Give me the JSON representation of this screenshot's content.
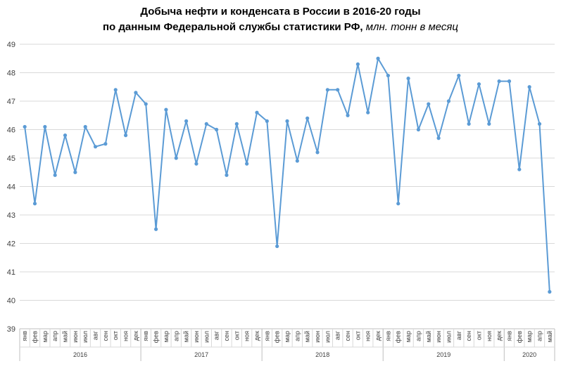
{
  "chart_data": {
    "type": "line",
    "title_line1": "Добыча нефти и конденсата в России в 2016-20 годы",
    "title_line2": "по данным Федеральной службы статистики РФ,",
    "title_unit": "млн. тонн в месяц",
    "ylim": [
      39,
      49
    ],
    "yticks": [
      "39",
      "40",
      "41",
      "42",
      "43",
      "44",
      "45",
      "46",
      "47",
      "48",
      "49"
    ],
    "grid": true,
    "line_color": "#5b9bd5",
    "legend": "none",
    "groups": [
      {
        "label": "2016",
        "months": [
          "янв",
          "фев",
          "мар",
          "апр",
          "май",
          "июн",
          "июл",
          "авг",
          "сен",
          "окт",
          "ноя",
          "дек"
        ]
      },
      {
        "label": "2017",
        "months": [
          "янв",
          "фев",
          "мар",
          "апр",
          "май",
          "июн",
          "июл",
          "авг",
          "сен",
          "окт",
          "ноя",
          "дек"
        ]
      },
      {
        "label": "2018",
        "months": [
          "янв",
          "фев",
          "мар",
          "апр",
          "май",
          "июн",
          "июл",
          "авг",
          "сен",
          "окт",
          "ноя",
          "дек"
        ]
      },
      {
        "label": "2019",
        "months": [
          "янв",
          "фев",
          "мар",
          "апр",
          "май",
          "июн",
          "июл",
          "авг",
          "сен",
          "окт",
          "ноя",
          "дек"
        ]
      },
      {
        "label": "2020",
        "months": [
          "янв",
          "фев",
          "мар",
          "апр",
          "май"
        ]
      }
    ],
    "values": [
      46.1,
      43.4,
      46.1,
      44.4,
      45.8,
      44.5,
      46.1,
      45.4,
      45.5,
      47.4,
      45.8,
      47.3,
      46.9,
      42.5,
      46.7,
      45.0,
      46.3,
      44.8,
      46.2,
      46.0,
      44.4,
      46.2,
      44.8,
      46.6,
      46.3,
      41.9,
      46.3,
      44.9,
      46.4,
      45.2,
      47.4,
      47.4,
      46.5,
      48.3,
      46.6,
      48.5,
      47.9,
      43.4,
      47.8,
      46.0,
      46.9,
      45.7,
      47.0,
      47.9,
      46.2,
      47.6,
      46.2,
      47.7,
      47.7,
      44.6,
      47.5,
      46.2,
      40.3
    ]
  }
}
